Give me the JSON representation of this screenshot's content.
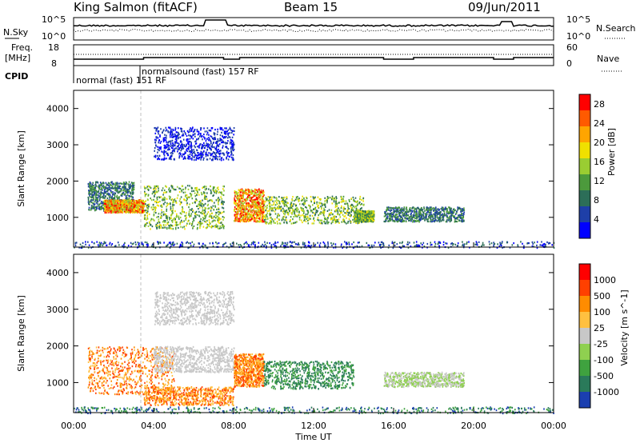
{
  "header": {
    "station": "King Salmon (fitACF)",
    "beam": "Beam 15",
    "date": "09/Jun/2011"
  },
  "top_panels": {
    "nsky_label": "N.Sky",
    "nsearch_label": "N.Search",
    "freq_label_line1": "Freq.",
    "freq_label_line2": "[MHz]",
    "nave_label": "Nave",
    "cpid_label": "CPID",
    "noise_left_ticks": [
      "10^5",
      "10^0"
    ],
    "noise_right_ticks": [
      "10^5",
      "10^0"
    ],
    "freq_left_ticks": [
      "18",
      "8"
    ],
    "nave_right_ticks": [
      "60",
      "0"
    ],
    "cpid_modes": [
      {
        "label": "normal (fast) 151 RF",
        "start_hour": 0.0
      },
      {
        "label": "normalsound (fast) 157 RF",
        "start_hour": 3.5
      }
    ]
  },
  "chart_data": [
    {
      "type": "heatmap",
      "panel": "power",
      "ylabel": "Slant Range [km]",
      "xlabel": "",
      "xlim": [
        0,
        24
      ],
      "ylim": [
        180,
        4500
      ],
      "yticks": [
        "1000",
        "2000",
        "3000",
        "4000"
      ],
      "colorbar": {
        "label": "Power [dB]",
        "ticks": [
          "4",
          "8",
          "12",
          "16",
          "20",
          "24",
          "28"
        ],
        "range": [
          0,
          30
        ],
        "colors": [
          "#0000ff",
          "#1e3fa8",
          "#2c6e58",
          "#4c9a3c",
          "#9acd32",
          "#f0e000",
          "#ffa500",
          "#ff5a00",
          "#ff0000"
        ]
      },
      "features": [
        {
          "t": [
            0.7,
            3.0
          ],
          "r": [
            1200,
            2000
          ],
          "level": "low-mid"
        },
        {
          "t": [
            1.5,
            3.5
          ],
          "r": [
            1150,
            1500
          ],
          "level": "high"
        },
        {
          "t": [
            3.5,
            7.5
          ],
          "r": [
            700,
            1900
          ],
          "level": "mid"
        },
        {
          "t": [
            4.0,
            8.0
          ],
          "r": [
            2600,
            3500
          ],
          "level": "low"
        },
        {
          "t": [
            8.0,
            9.5
          ],
          "r": [
            900,
            1800
          ],
          "level": "high"
        },
        {
          "t": [
            9.5,
            14.5
          ],
          "r": [
            850,
            1600
          ],
          "level": "mid"
        },
        {
          "t": [
            15.5,
            19.5
          ],
          "r": [
            900,
            1300
          ],
          "level": "low-mid"
        },
        {
          "t": [
            14.0,
            15.0
          ],
          "r": [
            900,
            1200
          ],
          "level": "mid"
        },
        {
          "t": [
            0,
            24
          ],
          "r": [
            180,
            350
          ],
          "level": "ground"
        }
      ]
    },
    {
      "type": "heatmap",
      "panel": "velocity",
      "ylabel": "Slant Range [km]",
      "xlabel": "Time UT",
      "xlim": [
        0,
        24
      ],
      "ylim": [
        180,
        4500
      ],
      "yticks": [
        "1000",
        "2000",
        "3000",
        "4000"
      ],
      "xticks": [
        "00:00",
        "04:00",
        "08:00",
        "12:00",
        "16:00",
        "20:00",
        "00:00"
      ],
      "colorbar": {
        "label": "Velocity [m s^-1]",
        "ticks": [
          "1000",
          "500",
          "100",
          "25",
          "-25",
          "-100",
          "-500",
          "-1000"
        ],
        "range": [
          -1200,
          1200
        ],
        "colors": [
          "#1b3fb0",
          "#2a7a5a",
          "#3fa23f",
          "#8fd050",
          "#c8c8c8",
          "#ffc040",
          "#ff8c00",
          "#ff4000",
          "#ff0000"
        ]
      },
      "features": [
        {
          "t": [
            0.7,
            5.0
          ],
          "r": [
            700,
            2000
          ],
          "level": "away"
        },
        {
          "t": [
            3.5,
            8.0
          ],
          "r": [
            400,
            900
          ],
          "level": "away"
        },
        {
          "t": [
            4.0,
            8.0
          ],
          "r": [
            1300,
            2000
          ],
          "level": "near-zero"
        },
        {
          "t": [
            4.0,
            8.0
          ],
          "r": [
            2600,
            3500
          ],
          "level": "near-zero"
        },
        {
          "t": [
            8.0,
            9.5
          ],
          "r": [
            900,
            1800
          ],
          "level": "away"
        },
        {
          "t": [
            9.5,
            14.0
          ],
          "r": [
            850,
            1600
          ],
          "level": "toward"
        },
        {
          "t": [
            15.5,
            19.5
          ],
          "r": [
            900,
            1300
          ],
          "level": "toward-weak"
        },
        {
          "t": [
            0,
            24
          ],
          "r": [
            180,
            350
          ],
          "level": "ground"
        }
      ]
    }
  ]
}
